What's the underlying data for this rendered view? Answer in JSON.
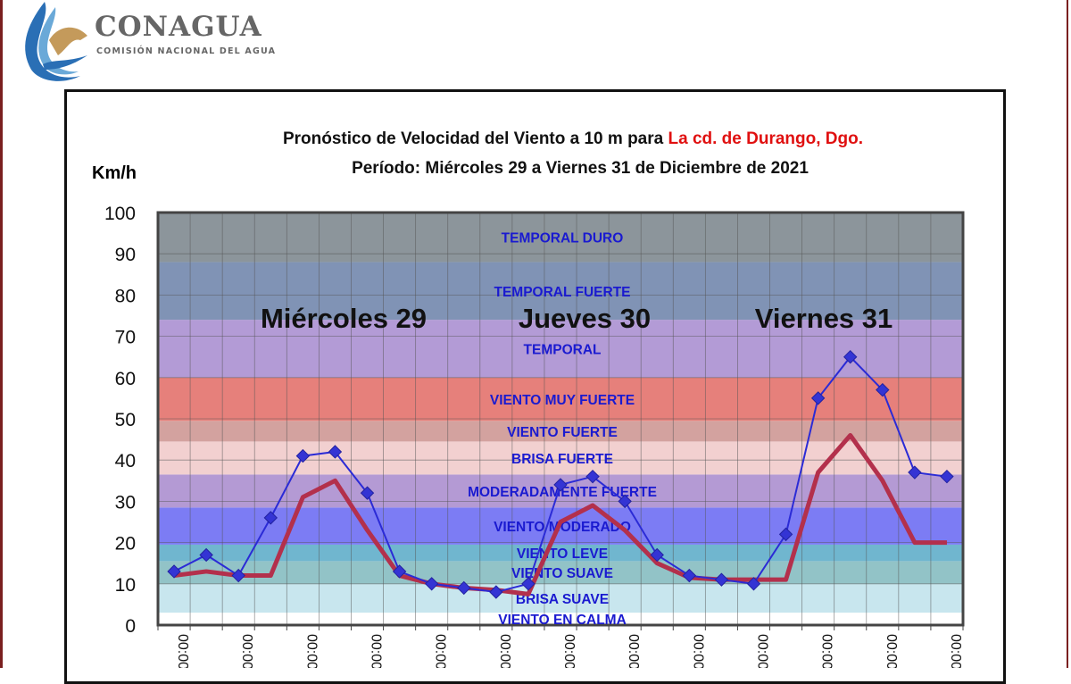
{
  "logo": {
    "name": "CONAGUA",
    "subtitle": "COMISIÓN NACIONAL DEL AGUA"
  },
  "chart_data": {
    "type": "line",
    "title_prefix": "Pronóstico de Velocidad del Viento a 10 m para ",
    "title_location": "La cd. de Durango, Dgo.",
    "subtitle": "Período: Miércoles 29 a Viernes 31 de Diciembre de 2021",
    "ylabel": "Km/h",
    "ylim": [
      0,
      100
    ],
    "yticks": [
      0,
      10,
      20,
      30,
      40,
      50,
      60,
      70,
      80,
      90,
      100
    ],
    "grid": true,
    "x_tick_labels": [
      "00:00",
      "00:00",
      "00:00",
      "00:00",
      "00:00",
      "00:00",
      "00:00",
      "00:00",
      "00:00",
      "00:00",
      "00:00",
      "00:00",
      "00:00"
    ],
    "day_labels": [
      "Miércoles 29",
      "Jueves 30",
      "Viernes 31"
    ],
    "bands": [
      {
        "label": "VIENTO EN CALMA",
        "from": 0,
        "to": 3,
        "color": "#ffffff"
      },
      {
        "label": "BRISA SUAVE",
        "from": 3,
        "to": 10,
        "color": "#c8e6ee"
      },
      {
        "label": "VIENTO SUAVE",
        "from": 10,
        "to": 15.5,
        "color": "#92c3c7"
      },
      {
        "label": "VIENTO LEVE",
        "from": 15.5,
        "to": 19.5,
        "color": "#70b6cf"
      },
      {
        "label": "VIENTO MODERADO",
        "from": 19.5,
        "to": 28.5,
        "color": "#7c7cf4"
      },
      {
        "label": "MODERADAMENTE FUERTE",
        "from": 28.5,
        "to": 36.5,
        "color": "#b49ad4"
      },
      {
        "label": "BRISA FUERTE",
        "from": 36.5,
        "to": 44.5,
        "color": "#f2d0d0"
      },
      {
        "label": "VIENTO FUERTE",
        "from": 44.5,
        "to": 49.5,
        "color": "#d3a29f"
      },
      {
        "label": "VIENTO MUY FUERTE",
        "from": 49.5,
        "to": 60,
        "color": "#e6807b"
      },
      {
        "label": "TEMPORAL",
        "from": 60,
        "to": 74,
        "color": "#b39bd6"
      },
      {
        "label": "TEMPORAL FUERTE",
        "from": 74,
        "to": 88,
        "color": "#8093b5"
      },
      {
        "label": "TEMPORAL DURO",
        "from": 88,
        "to": 100,
        "color": "#8c959b"
      }
    ],
    "series": [
      {
        "values": [
          13,
          17,
          12,
          26,
          41,
          42,
          32,
          13,
          10,
          9,
          8,
          10,
          34,
          36,
          30,
          17,
          12,
          11,
          10,
          22,
          55,
          65,
          57,
          37,
          36
        ],
        "color": "#2b2bd6",
        "marker": "diamond"
      },
      {
        "values": [
          12,
          13,
          12,
          12,
          31,
          35,
          23,
          12,
          10,
          9,
          8.5,
          7.5,
          25,
          29,
          23,
          15,
          11.5,
          11,
          11,
          11,
          37,
          46,
          35,
          20,
          20
        ],
        "color": "#b3304c",
        "marker": "none"
      }
    ]
  }
}
